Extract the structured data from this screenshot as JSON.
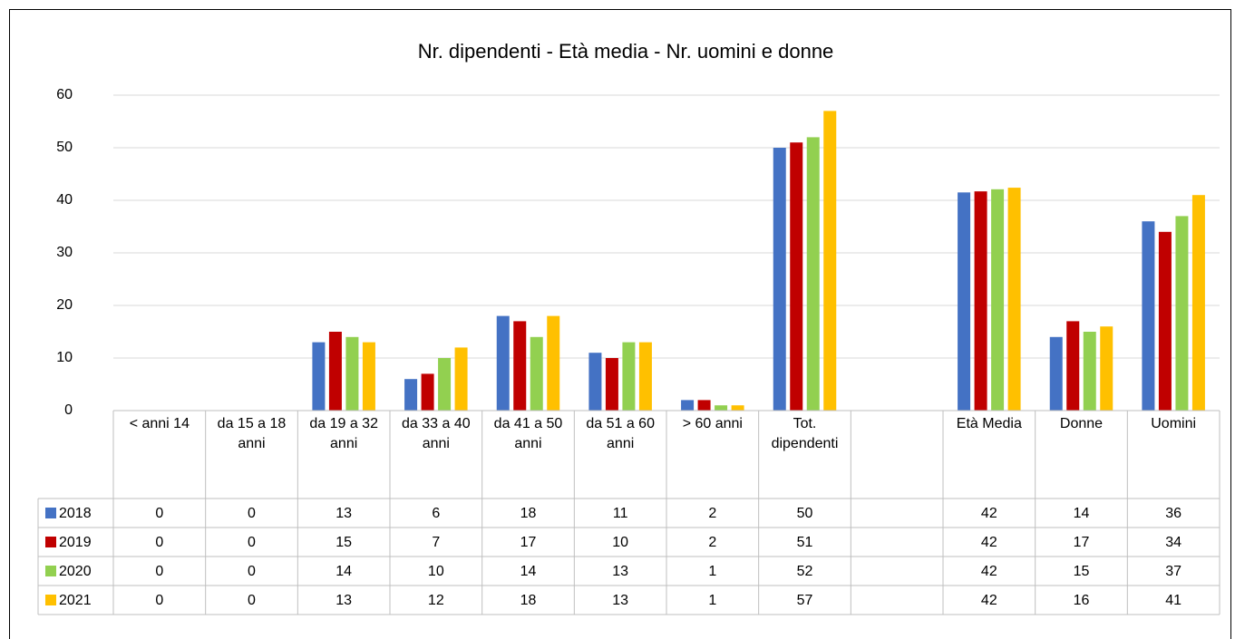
{
  "chart_data": {
    "type": "bar",
    "title": "Nr. dipendenti - Età media - Nr. uomini e donne",
    "categories": [
      "< anni 14",
      "da 15 a 18 anni",
      "da 19 a 32 anni",
      "da 33 a 40 anni",
      "da 41 a 50 anni",
      "da 51 a 60 anni",
      "> 60 anni",
      "Tot. dipendenti",
      null,
      "Età Media",
      "Donne",
      "Uomini"
    ],
    "series": [
      {
        "name": "2018",
        "color": "#4472c4",
        "values": [
          0,
          0,
          13,
          6,
          18,
          11,
          2,
          50,
          null,
          41.5,
          14,
          36
        ],
        "value_labels": [
          "0",
          "0",
          "13",
          "6",
          "18",
          "11",
          "2",
          "50",
          null,
          "42",
          "14",
          "36"
        ]
      },
      {
        "name": "2019",
        "color": "#c00000",
        "values": [
          0,
          0,
          15,
          7,
          17,
          10,
          2,
          51,
          null,
          41.7,
          17,
          34
        ],
        "value_labels": [
          "0",
          "0",
          "15",
          "7",
          "17",
          "10",
          "2",
          "51",
          null,
          "42",
          "17",
          "34"
        ]
      },
      {
        "name": "2020",
        "color": "#92d050",
        "values": [
          0,
          0,
          14,
          10,
          14,
          13,
          1,
          52,
          null,
          42.1,
          15,
          37
        ],
        "value_labels": [
          "0",
          "0",
          "14",
          "10",
          "14",
          "13",
          "1",
          "52",
          null,
          "42",
          "15",
          "37"
        ]
      },
      {
        "name": "2021",
        "color": "#ffc000",
        "values": [
          0,
          0,
          13,
          12,
          18,
          13,
          1,
          57,
          null,
          42.4,
          16,
          41
        ],
        "value_labels": [
          "0",
          "0",
          "13",
          "12",
          "18",
          "13",
          "1",
          "57",
          null,
          "42",
          "16",
          "41"
        ]
      }
    ],
    "ylim": [
      0,
      60
    ],
    "yticks": [
      0,
      10,
      20,
      30,
      40,
      50,
      60
    ],
    "grid": true,
    "data_table": true
  }
}
